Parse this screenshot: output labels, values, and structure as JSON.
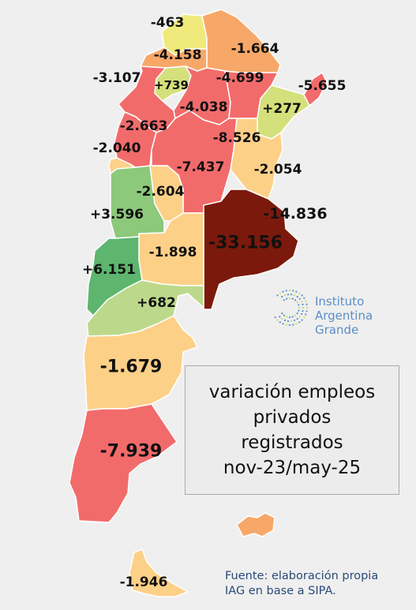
{
  "title_lines": [
    "variación empleos",
    "privados",
    "registrados",
    "nov-23/may-25"
  ],
  "logo": {
    "line1": "Instituto",
    "line2": "Argentina Grande",
    "icon": "dotted-circle-logo",
    "color": "#5b8fc6"
  },
  "source": {
    "line1": "Fuente: elaboración propia",
    "line2": "IAG en base a SIPA."
  },
  "colors": {
    "dark_red": "#7b1a0c",
    "red": "#f26b6b",
    "orange": "#f7a868",
    "light_orange": "#fdd088",
    "yellow": "#f0ea7c",
    "yellow_green": "#d4e07c",
    "light_green": "#bcd98b",
    "green": "#8cc97a",
    "dark_green": "#5db56e",
    "background": "#efefef"
  },
  "provinces": [
    {
      "name": "Jujuy",
      "value": "-463"
    },
    {
      "name": "Salta",
      "value": "-1.664"
    },
    {
      "name": "Catamarca (N)",
      "value": "-4.158"
    },
    {
      "name": "Catamarca",
      "value": "-3.107"
    },
    {
      "name": "Tucumán",
      "value": "+739"
    },
    {
      "name": "Santiago del Estero",
      "value": "-4.699"
    },
    {
      "name": "Misiones",
      "value": "-5.655"
    },
    {
      "name": "Corrientes",
      "value": "+277"
    },
    {
      "name": "La Rioja",
      "value": "-2.663"
    },
    {
      "name": "Chaco/Formosa",
      "value": "-4.038"
    },
    {
      "name": "San Juan",
      "value": "-2.040"
    },
    {
      "name": "Santa Fe",
      "value": "-8.526"
    },
    {
      "name": "Córdoba",
      "value": "-7.437"
    },
    {
      "name": "Entre Ríos",
      "value": "-2.054"
    },
    {
      "name": "San Luis",
      "value": "-2.604"
    },
    {
      "name": "CABA",
      "value": "-14.836"
    },
    {
      "name": "Mendoza",
      "value": "+3.596"
    },
    {
      "name": "Buenos Aires",
      "value": "-33.156"
    },
    {
      "name": "La Pampa",
      "value": "-1.898"
    },
    {
      "name": "Neuquén",
      "value": "+6.151"
    },
    {
      "name": "Río Negro",
      "value": "+682"
    },
    {
      "name": "Chubut",
      "value": "-1.679"
    },
    {
      "name": "Santa Cruz",
      "value": "-7.939"
    },
    {
      "name": "Tierra del Fuego",
      "value": "-1.946"
    }
  ]
}
